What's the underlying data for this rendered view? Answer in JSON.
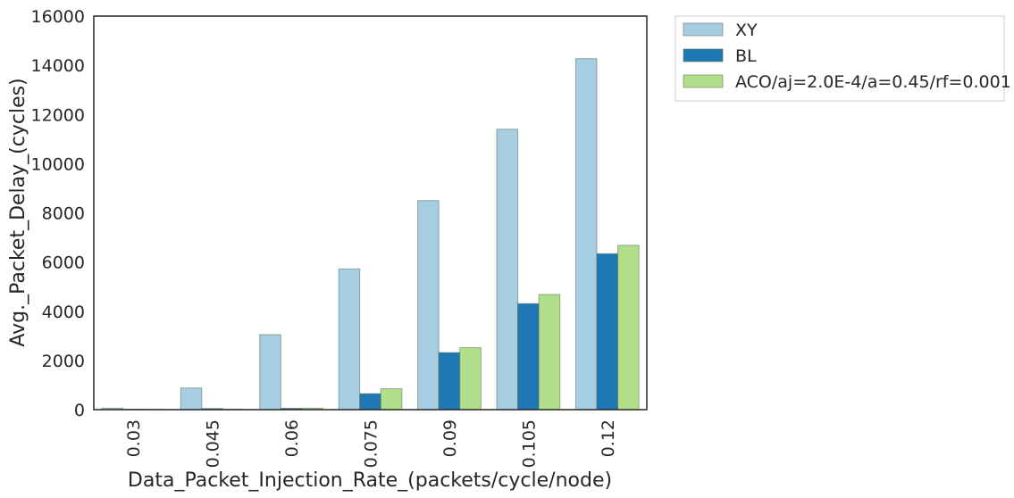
{
  "chart_data": {
    "type": "bar",
    "xlabel": "Data_Packet_Injection_Rate_(packets/cycle/node)",
    "ylabel": "Avg._Packet_Delay_(cycles)",
    "categories": [
      "0.03",
      "0.045",
      "0.06",
      "0.075",
      "0.09",
      "0.105",
      "0.12"
    ],
    "ylim": [
      0,
      16000
    ],
    "yticks": [
      "0",
      "2000",
      "4000",
      "6000",
      "8000",
      "10000",
      "12000",
      "14000",
      "16000"
    ],
    "series": [
      {
        "name": "XY",
        "color": "#a6cee3",
        "values": [
          60,
          880,
          3050,
          5720,
          8500,
          11400,
          14270
        ]
      },
      {
        "name": "BL",
        "color": "#1f78b4",
        "values": [
          20,
          45,
          55,
          650,
          2320,
          4310,
          6340
        ]
      },
      {
        "name": "ACO/aj=2.0E-4/a=0.45/rf=0.001",
        "color": "#b2df8a",
        "values": [
          15,
          20,
          60,
          850,
          2520,
          4680,
          6680
        ]
      }
    ],
    "grid": false,
    "legend_position": "outside-top-right"
  }
}
